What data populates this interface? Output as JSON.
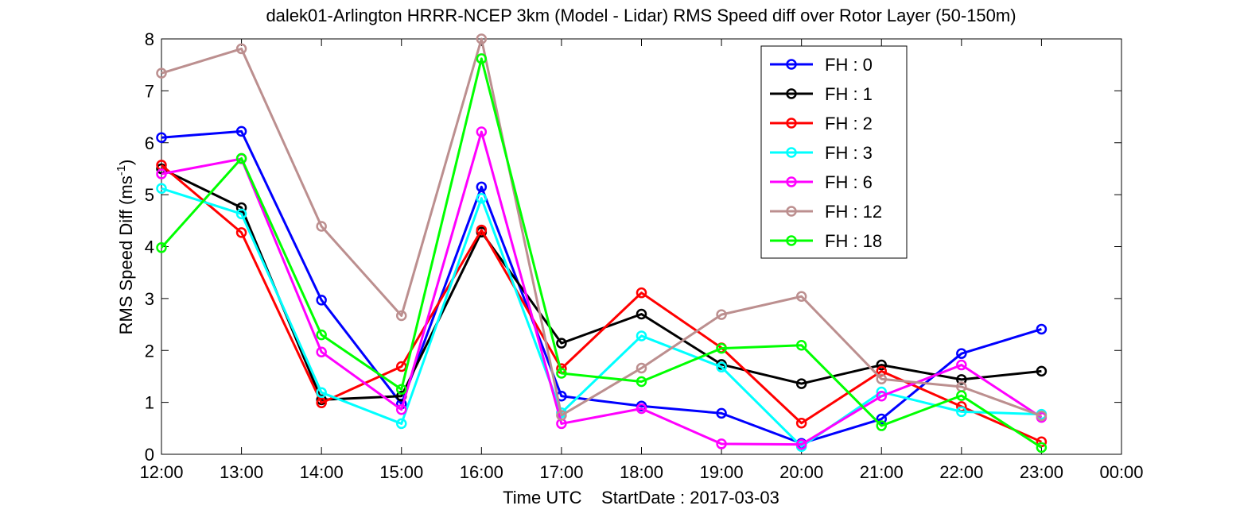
{
  "chart_data": {
    "type": "line",
    "title": "dalek01-Arlington HRRR-NCEP 3km (Model - Lidar) RMS Speed diff over Rotor Layer (50-150m)",
    "xlabel": "Time UTC    StartDate : 2017-03-03",
    "ylabel_main": "RMS Speed Diff (ms",
    "ylabel_sup": "-1",
    "ylabel_end": ")",
    "xticks": [
      "12:00",
      "13:00",
      "14:00",
      "15:00",
      "16:00",
      "17:00",
      "18:00",
      "19:00",
      "20:00",
      "21:00",
      "22:00",
      "23:00",
      "00:00"
    ],
    "yticks": [
      "0",
      "1",
      "2",
      "3",
      "4",
      "5",
      "6",
      "7",
      "8"
    ],
    "ylim": [
      0,
      8
    ],
    "grid": false,
    "legend_position": "top-right",
    "series": [
      {
        "name": "FH : 0",
        "color": "#0000ff",
        "values": [
          6.1,
          6.22,
          2.97,
          0.97,
          5.15,
          1.12,
          0.93,
          0.79,
          0.21,
          0.68,
          1.94,
          2.41
        ]
      },
      {
        "name": "FH : 1",
        "color": "#000000",
        "values": [
          5.5,
          4.75,
          1.05,
          1.12,
          4.28,
          2.14,
          2.7,
          1.73,
          1.36,
          1.72,
          1.44,
          1.6
        ]
      },
      {
        "name": "FH : 2",
        "color": "#ff0000",
        "values": [
          5.57,
          4.27,
          0.99,
          1.69,
          4.32,
          1.65,
          3.11,
          2.05,
          0.6,
          1.6,
          0.92,
          0.24
        ]
      },
      {
        "name": "FH : 3",
        "color": "#00ffff",
        "values": [
          5.12,
          4.63,
          1.19,
          0.59,
          4.93,
          0.8,
          2.28,
          1.68,
          0.15,
          1.2,
          0.82,
          0.77
        ]
      },
      {
        "name": "FH : 6",
        "color": "#ff00ff",
        "values": [
          5.4,
          5.69,
          1.97,
          0.86,
          6.21,
          0.59,
          0.88,
          0.2,
          0.19,
          1.12,
          1.72,
          0.71
        ]
      },
      {
        "name": "FH : 12",
        "color": "#bc8f8f",
        "values": [
          7.34,
          7.81,
          4.39,
          2.67,
          8.0,
          0.75,
          1.66,
          2.69,
          3.04,
          1.45,
          1.3,
          0.74
        ]
      },
      {
        "name": "FH : 18",
        "color": "#00ff00",
        "values": [
          3.98,
          5.7,
          2.3,
          1.25,
          7.62,
          1.56,
          1.4,
          2.04,
          2.1,
          0.55,
          1.13,
          0.13
        ]
      }
    ]
  }
}
